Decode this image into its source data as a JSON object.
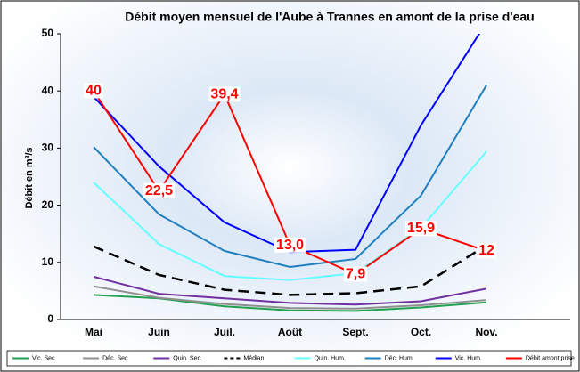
{
  "chart_data": {
    "type": "line",
    "title": "Débit moyen mensuel de l'Aube à Trannes en amont de la prise d'eau",
    "y_label": "Débit en m³/s",
    "categories": [
      "Mai",
      "Juin",
      "Juil.",
      "Août",
      "Sept.",
      "Oct.",
      "Nov."
    ],
    "ylim": [
      0,
      50
    ],
    "yticks": [
      0,
      10,
      20,
      30,
      40,
      50
    ],
    "series": [
      {
        "name": "Vic. Sec",
        "color": "#22a050",
        "values": [
          4.3,
          3.7,
          2.3,
          1.6,
          1.5,
          2.1,
          3.0
        ]
      },
      {
        "name": "Déc. Sec",
        "color": "#909090",
        "values": [
          5.8,
          3.8,
          2.7,
          2.0,
          1.9,
          2.5,
          3.4
        ]
      },
      {
        "name": "Quin. Sec",
        "color": "#7030a0",
        "values": [
          7.5,
          4.5,
          3.7,
          2.9,
          2.6,
          3.2,
          5.4
        ]
      },
      {
        "name": "Médian",
        "color": "#000000",
        "dashed": true,
        "values": [
          12.8,
          7.8,
          5.2,
          4.3,
          4.6,
          5.8,
          13.0
        ]
      },
      {
        "name": "Quin. Hum.",
        "color": "#66ffff",
        "values": [
          24.0,
          13.2,
          7.6,
          6.9,
          8.1,
          16.0,
          29.4
        ]
      },
      {
        "name": "Déc. Hum.",
        "color": "#1f7fbf",
        "values": [
          30.2,
          18.4,
          12.0,
          9.2,
          10.6,
          21.7,
          41.0
        ]
      },
      {
        "name": "Vic. Hum.",
        "color": "#0000ff",
        "values": [
          39.0,
          26.8,
          17.0,
          11.8,
          12.2,
          34.0,
          52.0
        ]
      },
      {
        "name": "Débit amont prise",
        "color": "#ff0000",
        "values": [
          40,
          22.5,
          39.4,
          13.0,
          7.9,
          15.9,
          12
        ],
        "value_labels": [
          "40",
          "22,5",
          "39,4",
          "13,0",
          "7,9",
          "15,9",
          "12"
        ]
      }
    ]
  }
}
